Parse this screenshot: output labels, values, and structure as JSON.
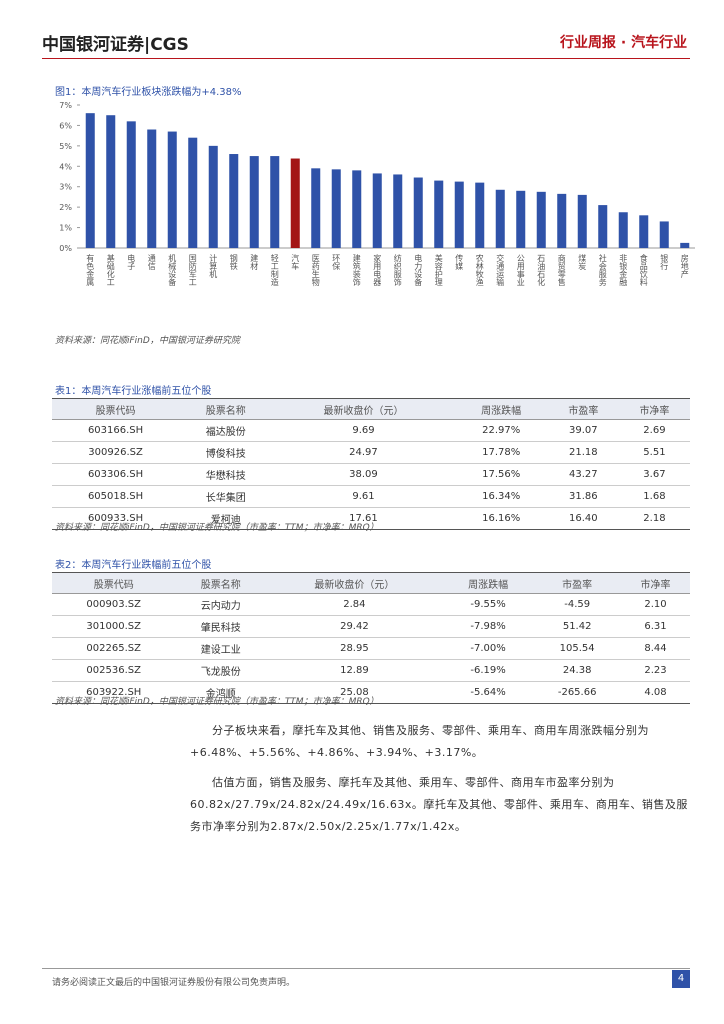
{
  "header": {
    "logo": "中国银河证券|CGS",
    "right": "行业周报 · 汽车行业"
  },
  "figure1": {
    "chart_data": {
      "type": "bar",
      "title": "图1：本周汽车行业板块涨跌幅为+4.38%",
      "categories": [
        "有色金属",
        "基础化工",
        "电子",
        "通信",
        "机械设备",
        "国防军工",
        "计算机",
        "钢铁",
        "建材",
        "轻工制造",
        "汽车",
        "医药生物",
        "环保",
        "建筑装饰",
        "家用电器",
        "纺织服饰",
        "电力设备",
        "美容护理",
        "传媒",
        "农林牧渔",
        "交通运输",
        "公用事业",
        "石油石化",
        "商贸零售",
        "煤炭",
        "社会服务",
        "非银金融",
        "食品饮料",
        "银行",
        "房地产"
      ],
      "values": [
        6.6,
        6.5,
        6.2,
        5.8,
        5.7,
        5.4,
        5.0,
        4.6,
        4.5,
        4.5,
        4.38,
        3.9,
        3.85,
        3.8,
        3.65,
        3.6,
        3.45,
        3.3,
        3.25,
        3.2,
        2.85,
        2.8,
        2.75,
        2.65,
        2.6,
        2.1,
        1.75,
        1.6,
        1.3,
        0.25
      ],
      "color": "#2f52a8",
      "highlight_color": "#a31515",
      "highlight": "汽车",
      "ylim": [
        0,
        7
      ],
      "yticks": [
        {
          "value": 0,
          "label": "0%"
        },
        {
          "value": 1,
          "label": "1%"
        },
        {
          "value": 2,
          "label": "2%"
        },
        {
          "value": 3,
          "label": "3%"
        },
        {
          "value": 4,
          "label": "4%"
        },
        {
          "value": 5,
          "label": "5%"
        },
        {
          "value": 6,
          "label": "6%"
        },
        {
          "value": 7,
          "label": "7%"
        }
      ]
    },
    "source": "资料来源：同花顺iFinD，中国银河证券研究院"
  },
  "table1": {
    "title": "表1：本周汽车行业涨幅前五位个股",
    "columns": [
      "股票代码",
      "股票名称",
      "最新收盘价（元）",
      "周涨跌幅",
      "市盈率",
      "市净率"
    ],
    "rows": [
      [
        "603166.SH",
        "福达股份",
        "9.69",
        "22.97%",
        "39.07",
        "2.69"
      ],
      [
        "300926.SZ",
        "博俊科技",
        "24.97",
        "17.78%",
        "21.18",
        "5.51"
      ],
      [
        "603306.SH",
        "华懋科技",
        "38.09",
        "17.56%",
        "43.27",
        "3.67"
      ],
      [
        "605018.SH",
        "长华集团",
        "9.61",
        "16.34%",
        "31.86",
        "1.68"
      ],
      [
        "600933.SH",
        "爱柯迪",
        "17.61",
        "16.16%",
        "16.40",
        "2.18"
      ]
    ],
    "source": "资料来源：同花顺iFinD，中国银河证券研究院（市盈率：TTM；市净率：MRQ）"
  },
  "table2": {
    "title": "表2：本周汽车行业跌幅前五位个股",
    "columns": [
      "股票代码",
      "股票名称",
      "最新收盘价（元）",
      "周涨跌幅",
      "市盈率",
      "市净率"
    ],
    "rows": [
      [
        "000903.SZ",
        "云内动力",
        "2.84",
        "-9.55%",
        "-4.59",
        "2.10"
      ],
      [
        "301000.SZ",
        "肇民科技",
        "29.42",
        "-7.98%",
        "51.42",
        "6.31"
      ],
      [
        "002265.SZ",
        "建设工业",
        "28.95",
        "-7.00%",
        "105.54",
        "8.44"
      ],
      [
        "002536.SZ",
        "飞龙股份",
        "12.89",
        "-6.19%",
        "24.38",
        "2.23"
      ],
      [
        "603922.SH",
        "金鸿顺",
        "25.08",
        "-5.64%",
        "-265.66",
        "4.08"
      ]
    ],
    "source": "资料来源：同花顺iFinD，中国银河证券研究院（市盈率：TTM；市净率：MRQ）"
  },
  "paragraphs": [
    "分子板块来看，摩托车及其他、销售及服务、零部件、乘用车、商用车周涨跌幅分别为+6.48%、+5.56%、+4.86%、+3.94%、+3.17%。",
    "估值方面，销售及服务、摩托车及其他、乘用车、零部件、商用车市盈率分别为60.82x/27.79x/24.82x/24.49x/16.63x。摩托车及其他、零部件、乘用车、商用车、销售及服务市净率分别为2.87x/2.50x/2.25x/1.77x/1.42x。"
  ],
  "footer": {
    "disclaimer": "请务必阅读正文最后的中国银河证券股份有限公司免责声明。",
    "page": "4"
  }
}
